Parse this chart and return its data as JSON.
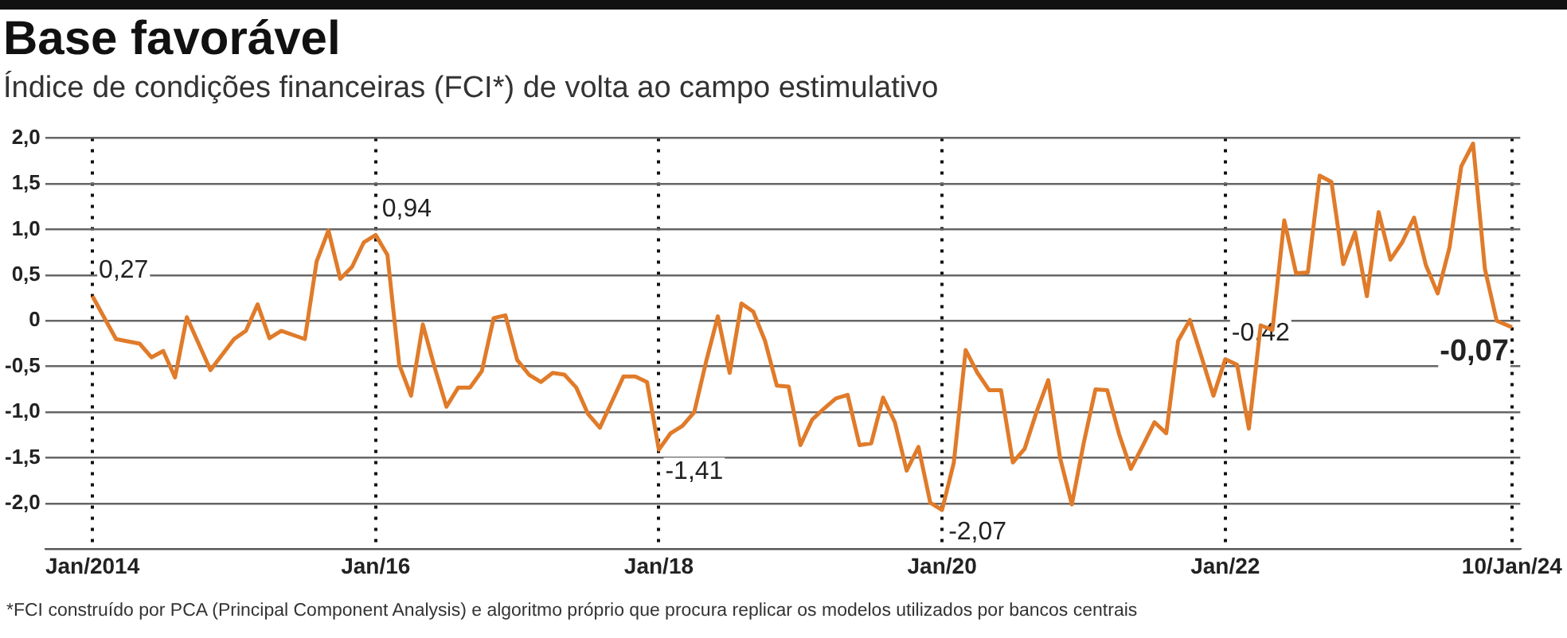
{
  "chart_data": {
    "type": "line",
    "title": "Base favorável",
    "subtitle": "Índice de condições financeiras (FCI*) de volta ao campo estimulativo",
    "x": [
      "2014-01",
      "2014-03",
      "2014-05",
      "2014-06",
      "2014-07",
      "2014-08",
      "2014-09",
      "2014-11",
      "2015-01",
      "2015-02",
      "2015-03",
      "2015-04",
      "2015-05",
      "2015-07",
      "2015-08",
      "2015-09",
      "2015-10",
      "2015-11",
      "2015-12",
      "2016-01",
      "2016-02",
      "2016-03",
      "2016-04",
      "2016-05",
      "2016-06",
      "2016-07",
      "2016-08",
      "2016-09",
      "2016-10",
      "2016-11",
      "2016-12",
      "2017-01",
      "2017-02",
      "2017-03",
      "2017-04",
      "2017-05",
      "2017-06",
      "2017-07",
      "2017-08",
      "2017-09",
      "2017-10",
      "2017-11",
      "2017-12",
      "2018-01",
      "2018-02",
      "2018-03",
      "2018-04",
      "2018-05",
      "2018-06",
      "2018-07",
      "2018-08",
      "2018-09",
      "2018-10",
      "2018-11",
      "2018-12",
      "2019-01",
      "2019-02",
      "2019-03",
      "2019-04",
      "2019-05",
      "2019-06",
      "2019-07",
      "2019-08",
      "2019-09",
      "2019-10",
      "2019-11",
      "2019-12",
      "2020-01",
      "2020-02",
      "2020-03",
      "2020-04",
      "2020-05",
      "2020-06",
      "2020-07",
      "2020-08",
      "2020-09",
      "2020-10",
      "2020-11",
      "2020-12",
      "2021-01",
      "2021-02",
      "2021-03",
      "2021-04",
      "2021-05",
      "2021-06",
      "2021-07",
      "2021-08",
      "2021-09",
      "2021-10",
      "2021-11",
      "2021-12",
      "2022-01",
      "2022-02",
      "2022-03",
      "2022-04",
      "2022-05",
      "2022-06",
      "2022-07",
      "2022-08",
      "2022-09",
      "2022-10",
      "2022-11",
      "2022-12",
      "2023-01",
      "2023-02",
      "2023-03",
      "2023-04",
      "2023-05",
      "2023-06",
      "2023-07",
      "2023-08",
      "2023-09",
      "2023-10",
      "2023-11",
      "2023-12",
      "2024-01-10"
    ],
    "series": [
      {
        "color": "#e07b2a",
        "values": [
          0.27,
          -0.2,
          -0.25,
          -0.4,
          -0.33,
          -0.62,
          0.04,
          -0.54,
          -0.2,
          -0.11,
          0.18,
          -0.19,
          -0.11,
          -0.2,
          0.65,
          0.99,
          0.46,
          0.59,
          0.86,
          0.94,
          0.72,
          -0.48,
          -0.82,
          -0.04,
          -0.51,
          -0.94,
          -0.73,
          -0.73,
          -0.55,
          0.03,
          0.06,
          -0.43,
          -0.59,
          -0.67,
          -0.57,
          -0.59,
          -0.73,
          -1.02,
          -1.17,
          -0.89,
          -0.61,
          -0.61,
          -0.67,
          -1.41,
          -1.23,
          -1.15,
          -1.0,
          -0.45,
          0.05,
          -0.57,
          0.19,
          0.1,
          -0.22,
          -0.71,
          -0.72,
          -1.36,
          -1.08,
          -0.96,
          -0.85,
          -0.81,
          -1.36,
          -1.34,
          -0.84,
          -1.11,
          -1.64,
          -1.38,
          -1.99,
          -2.07,
          -1.55,
          -0.32,
          -0.57,
          -0.76,
          -0.76,
          -1.55,
          -1.4,
          -1.0,
          -0.65,
          -1.5,
          -2.01,
          -1.34,
          -0.75,
          -0.76,
          -1.24,
          -1.62,
          -1.37,
          -1.11,
          -1.23,
          -0.22,
          0.01,
          -0.4,
          -0.82,
          -0.42,
          -0.48,
          -1.18,
          -0.05,
          -0.1,
          1.1,
          0.52,
          0.53,
          1.59,
          1.52,
          0.62,
          0.97,
          0.27,
          1.19,
          0.67,
          0.86,
          1.13,
          0.61,
          0.3,
          0.8,
          1.69,
          1.94,
          0.57,
          0.0,
          -0.07
        ]
      }
    ],
    "xlim": [
      "2013-09",
      "2024-02"
    ],
    "xticks": [
      {
        "value": "2014-01",
        "label": "Jan/2014"
      },
      {
        "value": "2016-01",
        "label": "Jan/16"
      },
      {
        "value": "2018-01",
        "label": "Jan/18"
      },
      {
        "value": "2020-01",
        "label": "Jan/20"
      },
      {
        "value": "2022-01",
        "label": "Jan/22"
      },
      {
        "value": "2024-01-10",
        "label": "10/Jan/24"
      }
    ],
    "ylim": [
      -2.5,
      2.0
    ],
    "yticks": [
      {
        "value": 2.0,
        "label": "2,0"
      },
      {
        "value": 1.5,
        "label": "1,5"
      },
      {
        "value": 1.0,
        "label": "1,0"
      },
      {
        "value": 0.5,
        "label": "0,5"
      },
      0,
      {
        "value": -0.5,
        "label": "-0,5"
      },
      {
        "value": -1.0,
        "label": "-1,0"
      },
      {
        "value": -1.5,
        "label": "-1,5"
      },
      {
        "value": -2.0,
        "label": "-2,0"
      },
      {
        "value": -2.5,
        "label": null
      }
    ],
    "grid": true,
    "annotations": [
      {
        "text": "0,27",
        "x": "2014-01",
        "y": 0.27
      },
      {
        "text": "0,94",
        "x": "2016-01",
        "y": 0.94
      },
      {
        "text": "-1,41",
        "x": "2018-01",
        "y": -1.41
      },
      {
        "text": "-2,07",
        "x": "2020-01",
        "y": -2.07
      },
      {
        "text": "-0,42",
        "x": "2022-01",
        "y": -0.42
      },
      {
        "text": "-0,07",
        "x": "2024-01-10",
        "y": -0.07
      },
      "*FCI construído por PCA (Principal Component Analysis) e algoritmo próprio que procura replicar os modelos utilizados por bancos centrais"
    ]
  }
}
